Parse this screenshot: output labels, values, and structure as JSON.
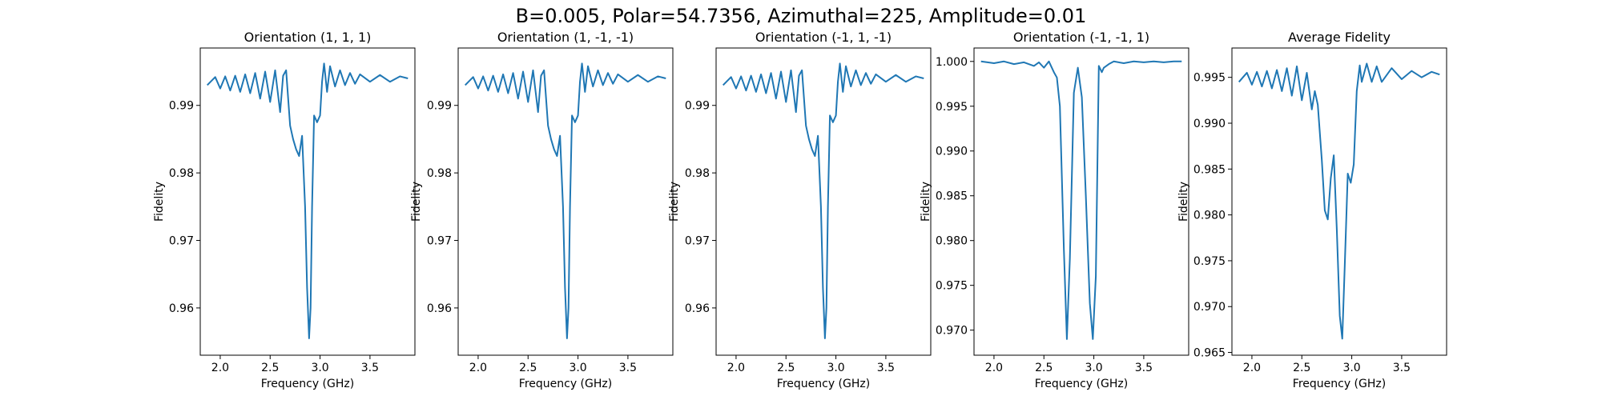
{
  "figure": {
    "suptitle": "B=0.005, Polar=54.7356, Azimuthal=225, Amplitude=0.01"
  },
  "chart_data": [
    {
      "type": "line",
      "title": "Orientation (1, 1, 1)",
      "xlabel": "Frequency (GHz)",
      "ylabel": "Fidelity",
      "xlim": [
        1.8,
        3.95
      ],
      "ylim": [
        0.953,
        0.9985
      ],
      "xticks": [
        2.0,
        2.5,
        3.0,
        3.5
      ],
      "xtick_labels": [
        "2.0",
        "2.5",
        "3.0",
        "3.5"
      ],
      "yticks": [
        0.96,
        0.97,
        0.98,
        0.99
      ],
      "ytick_labels": [
        "0.96",
        "0.97",
        "0.98",
        "0.99"
      ],
      "color": "#1f77b4",
      "series": [
        {
          "x": [
            1.87,
            1.95,
            2.0,
            2.05,
            2.1,
            2.15,
            2.2,
            2.25,
            2.3,
            2.35,
            2.4,
            2.45,
            2.5,
            2.55,
            2.6,
            2.63,
            2.66,
            2.7,
            2.73,
            2.76,
            2.79,
            2.82,
            2.85,
            2.87,
            2.89,
            2.905,
            2.92,
            2.94,
            2.97,
            3.0,
            3.02,
            3.04,
            3.07,
            3.1,
            3.15,
            3.2,
            3.25,
            3.3,
            3.35,
            3.4,
            3.5,
            3.6,
            3.7,
            3.8,
            3.88
          ],
          "y": [
            0.993,
            0.9942,
            0.9925,
            0.9943,
            0.9922,
            0.9944,
            0.992,
            0.9946,
            0.9918,
            0.9948,
            0.991,
            0.995,
            0.9905,
            0.9952,
            0.989,
            0.9944,
            0.9952,
            0.987,
            0.985,
            0.9835,
            0.9825,
            0.9855,
            0.975,
            0.963,
            0.9555,
            0.96,
            0.975,
            0.9885,
            0.9875,
            0.9885,
            0.9935,
            0.9962,
            0.992,
            0.9958,
            0.9928,
            0.9952,
            0.993,
            0.9948,
            0.9932,
            0.9946,
            0.9935,
            0.9945,
            0.9935,
            0.9943,
            0.994
          ]
        }
      ]
    },
    {
      "type": "line",
      "title": "Orientation (1, -1, -1)",
      "xlabel": "Frequency (GHz)",
      "ylabel": "Fidelity",
      "xlim": [
        1.8,
        3.95
      ],
      "ylim": [
        0.953,
        0.9985
      ],
      "xticks": [
        2.0,
        2.5,
        3.0,
        3.5
      ],
      "xtick_labels": [
        "2.0",
        "2.5",
        "3.0",
        "3.5"
      ],
      "yticks": [
        0.96,
        0.97,
        0.98,
        0.99
      ],
      "ytick_labels": [
        "0.96",
        "0.97",
        "0.98",
        "0.99"
      ],
      "color": "#1f77b4",
      "series": [
        {
          "x": [
            1.87,
            1.95,
            2.0,
            2.05,
            2.1,
            2.15,
            2.2,
            2.25,
            2.3,
            2.35,
            2.4,
            2.45,
            2.5,
            2.55,
            2.6,
            2.63,
            2.66,
            2.7,
            2.73,
            2.76,
            2.79,
            2.82,
            2.85,
            2.87,
            2.89,
            2.905,
            2.92,
            2.94,
            2.97,
            3.0,
            3.02,
            3.04,
            3.07,
            3.1,
            3.15,
            3.2,
            3.25,
            3.3,
            3.35,
            3.4,
            3.5,
            3.6,
            3.7,
            3.8,
            3.88
          ],
          "y": [
            0.993,
            0.9942,
            0.9925,
            0.9943,
            0.9922,
            0.9944,
            0.992,
            0.9946,
            0.9918,
            0.9948,
            0.991,
            0.995,
            0.9905,
            0.9952,
            0.989,
            0.9944,
            0.9952,
            0.987,
            0.985,
            0.9835,
            0.9825,
            0.9855,
            0.975,
            0.963,
            0.9555,
            0.96,
            0.975,
            0.9885,
            0.9875,
            0.9885,
            0.9935,
            0.9962,
            0.992,
            0.9958,
            0.9928,
            0.9952,
            0.993,
            0.9948,
            0.9932,
            0.9946,
            0.9935,
            0.9945,
            0.9935,
            0.9943,
            0.994
          ]
        }
      ]
    },
    {
      "type": "line",
      "title": "Orientation (-1, 1, -1)",
      "xlabel": "Frequency (GHz)",
      "ylabel": "Fidelity",
      "xlim": [
        1.8,
        3.95
      ],
      "ylim": [
        0.953,
        0.9985
      ],
      "xticks": [
        2.0,
        2.5,
        3.0,
        3.5
      ],
      "xtick_labels": [
        "2.0",
        "2.5",
        "3.0",
        "3.5"
      ],
      "yticks": [
        0.96,
        0.97,
        0.98,
        0.99
      ],
      "ytick_labels": [
        "0.96",
        "0.97",
        "0.98",
        "0.99"
      ],
      "color": "#1f77b4",
      "series": [
        {
          "x": [
            1.87,
            1.95,
            2.0,
            2.05,
            2.1,
            2.15,
            2.2,
            2.25,
            2.3,
            2.35,
            2.4,
            2.45,
            2.5,
            2.55,
            2.6,
            2.63,
            2.66,
            2.7,
            2.73,
            2.76,
            2.79,
            2.82,
            2.85,
            2.87,
            2.89,
            2.905,
            2.92,
            2.94,
            2.97,
            3.0,
            3.02,
            3.04,
            3.07,
            3.1,
            3.15,
            3.2,
            3.25,
            3.3,
            3.35,
            3.4,
            3.5,
            3.6,
            3.7,
            3.8,
            3.88
          ],
          "y": [
            0.993,
            0.9942,
            0.9925,
            0.9943,
            0.9922,
            0.9944,
            0.992,
            0.9946,
            0.9918,
            0.9948,
            0.991,
            0.995,
            0.9905,
            0.9952,
            0.989,
            0.9944,
            0.9952,
            0.987,
            0.985,
            0.9835,
            0.9825,
            0.9855,
            0.975,
            0.963,
            0.9555,
            0.96,
            0.975,
            0.9885,
            0.9875,
            0.9885,
            0.9935,
            0.9962,
            0.992,
            0.9958,
            0.9928,
            0.9952,
            0.993,
            0.9948,
            0.9932,
            0.9946,
            0.9935,
            0.9945,
            0.9935,
            0.9943,
            0.994
          ]
        }
      ]
    },
    {
      "type": "line",
      "title": "Orientation (-1, -1, 1)",
      "xlabel": "Frequency (GHz)",
      "ylabel": "Fidelity",
      "xlim": [
        1.8,
        3.95
      ],
      "ylim": [
        0.9672,
        1.0015
      ],
      "xticks": [
        2.0,
        2.5,
        3.0,
        3.5
      ],
      "xtick_labels": [
        "2.0",
        "2.5",
        "3.0",
        "3.5"
      ],
      "yticks": [
        0.97,
        0.975,
        0.98,
        0.985,
        0.99,
        0.995,
        1.0
      ],
      "ytick_labels": [
        "0.970",
        "0.975",
        "0.980",
        "0.985",
        "0.990",
        "0.995",
        "1.000"
      ],
      "color": "#1f77b4",
      "series": [
        {
          "x": [
            1.87,
            2.0,
            2.1,
            2.2,
            2.3,
            2.4,
            2.45,
            2.5,
            2.55,
            2.6,
            2.63,
            2.66,
            2.7,
            2.73,
            2.76,
            2.8,
            2.84,
            2.88,
            2.92,
            2.96,
            2.99,
            3.02,
            3.05,
            3.08,
            3.1,
            3.15,
            3.2,
            3.3,
            3.4,
            3.5,
            3.6,
            3.7,
            3.8,
            3.88
          ],
          "y": [
            1.0,
            0.9998,
            1.0,
            0.9997,
            0.9999,
            0.9995,
            0.9999,
            0.9993,
            1.0,
            0.9988,
            0.9982,
            0.995,
            0.979,
            0.969,
            0.978,
            0.9965,
            0.9993,
            0.996,
            0.985,
            0.973,
            0.969,
            0.976,
            0.9995,
            0.9988,
            0.9993,
            0.9997,
            1.0,
            0.9998,
            1.0,
            0.9999,
            1.0,
            0.9999,
            1.0,
            1.0
          ]
        }
      ]
    },
    {
      "type": "line",
      "title": "Average Fidelity",
      "xlabel": "Frequency (GHz)",
      "ylabel": "Fidelity",
      "xlim": [
        1.8,
        3.95
      ],
      "ylim": [
        0.9647,
        0.9982
      ],
      "xticks": [
        2.0,
        2.5,
        3.0,
        3.5
      ],
      "xtick_labels": [
        "2.0",
        "2.5",
        "3.0",
        "3.5"
      ],
      "yticks": [
        0.965,
        0.97,
        0.975,
        0.98,
        0.985,
        0.99,
        0.995
      ],
      "ytick_labels": [
        "0.965",
        "0.970",
        "0.975",
        "0.980",
        "0.985",
        "0.990",
        "0.995"
      ],
      "color": "#1f77b4",
      "series": [
        {
          "x": [
            1.87,
            1.95,
            2.0,
            2.05,
            2.1,
            2.15,
            2.2,
            2.25,
            2.3,
            2.35,
            2.4,
            2.45,
            2.5,
            2.55,
            2.6,
            2.63,
            2.66,
            2.7,
            2.73,
            2.76,
            2.79,
            2.82,
            2.85,
            2.88,
            2.905,
            2.93,
            2.96,
            2.99,
            3.02,
            3.05,
            3.08,
            3.1,
            3.15,
            3.2,
            3.25,
            3.3,
            3.4,
            3.5,
            3.6,
            3.7,
            3.8,
            3.88
          ],
          "y": [
            0.9945,
            0.9955,
            0.9942,
            0.9956,
            0.994,
            0.9957,
            0.9938,
            0.9958,
            0.9935,
            0.996,
            0.993,
            0.9962,
            0.9925,
            0.9955,
            0.9915,
            0.9935,
            0.992,
            0.986,
            0.9805,
            0.9795,
            0.984,
            0.9865,
            0.9785,
            0.969,
            0.9665,
            0.9745,
            0.9845,
            0.9835,
            0.9855,
            0.9935,
            0.9963,
            0.9945,
            0.9965,
            0.9945,
            0.9962,
            0.9945,
            0.996,
            0.9948,
            0.9957,
            0.995,
            0.9956,
            0.9953
          ]
        }
      ]
    }
  ]
}
